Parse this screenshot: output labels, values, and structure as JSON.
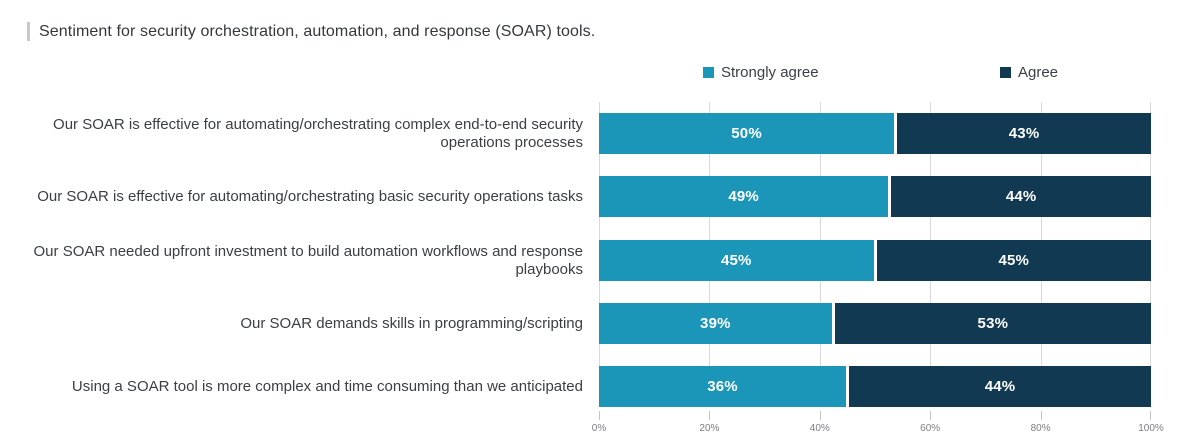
{
  "header": {
    "title": "Sentiment for security orchestration, automation, and response (SOAR) tools."
  },
  "chart_data": {
    "type": "bar",
    "orientation": "horizontal",
    "stacked": true,
    "normalized_to_100_percent_width": true,
    "title": "Sentiment for security orchestration, automation, and response (SOAR) tools.",
    "categories": [
      "Our SOAR is effective for automating/orchestrating complex end-to-end security operations processes",
      "Our SOAR is effective for automating/orchestrating basic security operations tasks",
      "Our SOAR needed upfront investment to build automation workflows and response playbooks",
      "Our SOAR demands skills in programming/scripting",
      "Using a SOAR tool is more complex and time consuming than we anticipated"
    ],
    "series": [
      {
        "name": "Strongly agree",
        "color": "#1b96b9",
        "values": [
          50,
          49,
          45,
          39,
          36
        ]
      },
      {
        "name": "Agree",
        "color": "#113a52",
        "values": [
          43,
          44,
          45,
          53,
          44
        ]
      }
    ],
    "value_suffix": "%",
    "x_ticks": [
      "0%",
      "20%",
      "40%",
      "60%",
      "80%",
      "100%"
    ],
    "xlim": [
      0,
      100
    ],
    "grid": "vertical",
    "legend_position": "top",
    "colors": {
      "strongly_agree": "#1b96b9",
      "agree": "#113a52",
      "gridline": "#d8d9db",
      "tick_text": "#7a7d82",
      "category_text": "#3b3e44",
      "title_text": "#34373c",
      "title_accent_bar": "#c7c8ca",
      "bar_value_text": "#ffffff"
    }
  }
}
